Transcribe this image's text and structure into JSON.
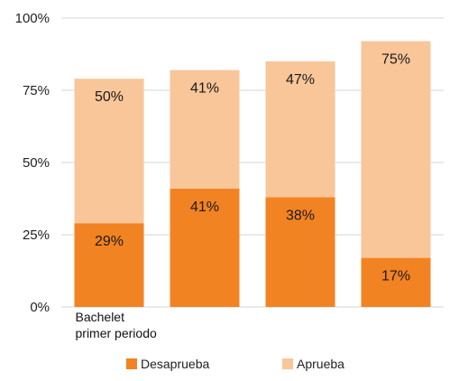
{
  "chart_data": {
    "type": "bar",
    "stacked": true,
    "categories": [
      "Bachelet\nprimer periodo",
      "",
      "",
      ""
    ],
    "series": [
      {
        "name": "Desaprueba",
        "color": "#f28322",
        "values": [
          29,
          41,
          38,
          17
        ]
      },
      {
        "name": "Aprueba",
        "color": "#f9c699",
        "values": [
          50,
          41,
          47,
          75
        ]
      }
    ],
    "data_labels": [
      [
        "29%",
        "41%",
        "38%",
        "17%"
      ],
      [
        "50%",
        "41%",
        "47%",
        "75%"
      ]
    ],
    "y_ticks": [
      0,
      25,
      50,
      75,
      100
    ],
    "y_tick_labels": [
      "0%",
      "25%",
      "50%",
      "75%",
      "100%"
    ],
    "ylim": [
      0,
      100
    ],
    "grid": true,
    "legend_position": "bottom"
  }
}
